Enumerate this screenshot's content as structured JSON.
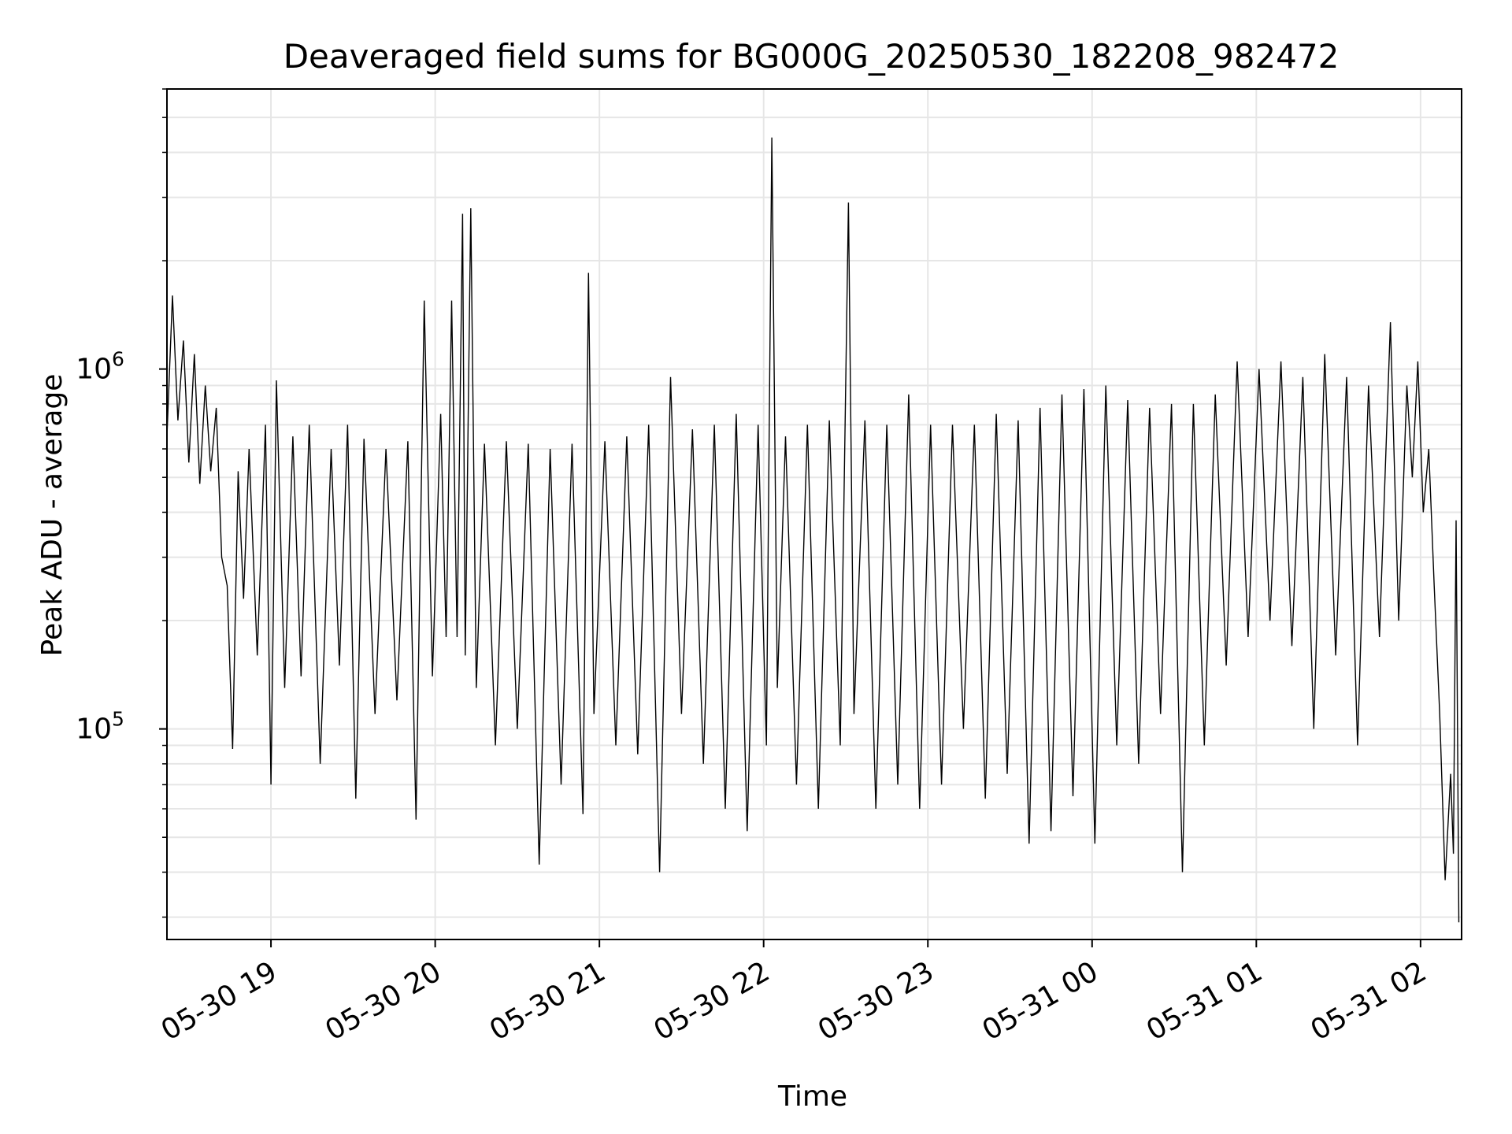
{
  "chart_data": {
    "type": "line",
    "title": "Deaveraged field sums for BG000G_20250530_182208_982472",
    "xlabel": "Time",
    "ylabel": "Peak ADU - average",
    "yscale": "log",
    "xlim": [
      "2025-05-30 18:22",
      "2025-05-31 02:15"
    ],
    "ylim": [
      26000,
      6000000
    ],
    "grid": true,
    "x_ticks": [
      {
        "t": "2025-05-30 19:00",
        "label": "05-30 19"
      },
      {
        "t": "2025-05-30 20:00",
        "label": "05-30 20"
      },
      {
        "t": "2025-05-30 21:00",
        "label": "05-30 21"
      },
      {
        "t": "2025-05-30 22:00",
        "label": "05-30 22"
      },
      {
        "t": "2025-05-30 23:00",
        "label": "05-30 23"
      },
      {
        "t": "2025-05-31 00:00",
        "label": "05-31 00"
      },
      {
        "t": "2025-05-31 01:00",
        "label": "05-31 01"
      },
      {
        "t": "2025-05-31 02:00",
        "label": "05-31 02"
      }
    ],
    "y_ticks": [
      {
        "value": 100000,
        "base": "10",
        "exp": "5"
      },
      {
        "value": 1000000,
        "base": "10",
        "exp": "6"
      }
    ],
    "series": [
      {
        "color": "#000000",
        "points": [
          [
            "2025-05-30 18:22",
            650000
          ],
          [
            "2025-05-30 18:24",
            1600000
          ],
          [
            "2025-05-30 18:26",
            720000
          ],
          [
            "2025-05-30 18:28",
            1200000
          ],
          [
            "2025-05-30 18:30",
            550000
          ],
          [
            "2025-05-30 18:32",
            1100000
          ],
          [
            "2025-05-30 18:34",
            480000
          ],
          [
            "2025-05-30 18:36",
            900000
          ],
          [
            "2025-05-30 18:38",
            520000
          ],
          [
            "2025-05-30 18:40",
            780000
          ],
          [
            "2025-05-30 18:42",
            300000
          ],
          [
            "2025-05-30 18:44",
            250000
          ],
          [
            "2025-05-30 18:46",
            88000
          ],
          [
            "2025-05-30 18:48",
            520000
          ],
          [
            "2025-05-30 18:50",
            230000
          ],
          [
            "2025-05-30 18:52",
            600000
          ],
          [
            "2025-05-30 18:55",
            160000
          ],
          [
            "2025-05-30 18:58",
            700000
          ],
          [
            "2025-05-30 19:00",
            70000
          ],
          [
            "2025-05-30 19:02",
            930000
          ],
          [
            "2025-05-30 19:05",
            130000
          ],
          [
            "2025-05-30 19:08",
            650000
          ],
          [
            "2025-05-30 19:11",
            140000
          ],
          [
            "2025-05-30 19:14",
            700000
          ],
          [
            "2025-05-30 19:18",
            80000
          ],
          [
            "2025-05-30 19:22",
            600000
          ],
          [
            "2025-05-30 19:25",
            150000
          ],
          [
            "2025-05-30 19:28",
            700000
          ],
          [
            "2025-05-30 19:31",
            64000
          ],
          [
            "2025-05-30 19:34",
            640000
          ],
          [
            "2025-05-30 19:38",
            110000
          ],
          [
            "2025-05-30 19:42",
            600000
          ],
          [
            "2025-05-30 19:46",
            120000
          ],
          [
            "2025-05-30 19:50",
            630000
          ],
          [
            "2025-05-30 19:53",
            56000
          ],
          [
            "2025-05-30 19:56",
            1550000
          ],
          [
            "2025-05-30 19:59",
            140000
          ],
          [
            "2025-05-30 20:02",
            750000
          ],
          [
            "2025-05-30 20:04",
            180000
          ],
          [
            "2025-05-30 20:06",
            1550000
          ],
          [
            "2025-05-30 20:08",
            180000
          ],
          [
            "2025-05-30 20:10",
            2700000
          ],
          [
            "2025-05-30 20:11",
            160000
          ],
          [
            "2025-05-30 20:13",
            2800000
          ],
          [
            "2025-05-30 20:15",
            130000
          ],
          [
            "2025-05-30 20:18",
            620000
          ],
          [
            "2025-05-30 20:22",
            90000
          ],
          [
            "2025-05-30 20:26",
            630000
          ],
          [
            "2025-05-30 20:30",
            100000
          ],
          [
            "2025-05-30 20:34",
            620000
          ],
          [
            "2025-05-30 20:38",
            42000
          ],
          [
            "2025-05-30 20:42",
            600000
          ],
          [
            "2025-05-30 20:46",
            70000
          ],
          [
            "2025-05-30 20:50",
            620000
          ],
          [
            "2025-05-30 20:54",
            58000
          ],
          [
            "2025-05-30 20:56",
            1850000
          ],
          [
            "2025-05-30 20:58",
            110000
          ],
          [
            "2025-05-30 21:02",
            630000
          ],
          [
            "2025-05-30 21:06",
            90000
          ],
          [
            "2025-05-30 21:10",
            650000
          ],
          [
            "2025-05-30 21:14",
            85000
          ],
          [
            "2025-05-30 21:18",
            700000
          ],
          [
            "2025-05-30 21:22",
            40000
          ],
          [
            "2025-05-30 21:26",
            950000
          ],
          [
            "2025-05-30 21:30",
            110000
          ],
          [
            "2025-05-30 21:34",
            680000
          ],
          [
            "2025-05-30 21:38",
            80000
          ],
          [
            "2025-05-30 21:42",
            700000
          ],
          [
            "2025-05-30 21:46",
            60000
          ],
          [
            "2025-05-30 21:50",
            750000
          ],
          [
            "2025-05-30 21:54",
            52000
          ],
          [
            "2025-05-30 21:58",
            700000
          ],
          [
            "2025-05-30 22:01",
            90000
          ],
          [
            "2025-05-30 22:03",
            4400000
          ],
          [
            "2025-05-30 22:05",
            130000
          ],
          [
            "2025-05-30 22:08",
            650000
          ],
          [
            "2025-05-30 22:12",
            70000
          ],
          [
            "2025-05-30 22:16",
            700000
          ],
          [
            "2025-05-30 22:20",
            60000
          ],
          [
            "2025-05-30 22:24",
            720000
          ],
          [
            "2025-05-30 22:28",
            90000
          ],
          [
            "2025-05-30 22:31",
            2900000
          ],
          [
            "2025-05-30 22:33",
            110000
          ],
          [
            "2025-05-30 22:37",
            720000
          ],
          [
            "2025-05-30 22:41",
            60000
          ],
          [
            "2025-05-30 22:45",
            700000
          ],
          [
            "2025-05-30 22:49",
            70000
          ],
          [
            "2025-05-30 22:53",
            850000
          ],
          [
            "2025-05-30 22:57",
            60000
          ],
          [
            "2025-05-30 23:01",
            700000
          ],
          [
            "2025-05-30 23:05",
            70000
          ],
          [
            "2025-05-30 23:09",
            700000
          ],
          [
            "2025-05-30 23:13",
            100000
          ],
          [
            "2025-05-30 23:17",
            700000
          ],
          [
            "2025-05-30 23:21",
            64000
          ],
          [
            "2025-05-30 23:25",
            750000
          ],
          [
            "2025-05-30 23:29",
            75000
          ],
          [
            "2025-05-30 23:33",
            720000
          ],
          [
            "2025-05-30 23:37",
            48000
          ],
          [
            "2025-05-30 23:41",
            780000
          ],
          [
            "2025-05-30 23:45",
            52000
          ],
          [
            "2025-05-30 23:49",
            850000
          ],
          [
            "2025-05-30 23:53",
            65000
          ],
          [
            "2025-05-30 23:57",
            880000
          ],
          [
            "2025-05-31 00:01",
            48000
          ],
          [
            "2025-05-31 00:05",
            900000
          ],
          [
            "2025-05-31 00:09",
            90000
          ],
          [
            "2025-05-31 00:13",
            820000
          ],
          [
            "2025-05-31 00:17",
            80000
          ],
          [
            "2025-05-31 00:21",
            780000
          ],
          [
            "2025-05-31 00:25",
            110000
          ],
          [
            "2025-05-31 00:29",
            800000
          ],
          [
            "2025-05-31 00:33",
            40000
          ],
          [
            "2025-05-31 00:37",
            800000
          ],
          [
            "2025-05-31 00:41",
            90000
          ],
          [
            "2025-05-31 00:45",
            850000
          ],
          [
            "2025-05-31 00:49",
            150000
          ],
          [
            "2025-05-31 00:53",
            1050000
          ],
          [
            "2025-05-31 00:57",
            180000
          ],
          [
            "2025-05-31 01:01",
            1000000
          ],
          [
            "2025-05-31 01:05",
            200000
          ],
          [
            "2025-05-31 01:09",
            1050000
          ],
          [
            "2025-05-31 01:13",
            170000
          ],
          [
            "2025-05-31 01:17",
            950000
          ],
          [
            "2025-05-31 01:21",
            100000
          ],
          [
            "2025-05-31 01:25",
            1100000
          ],
          [
            "2025-05-31 01:29",
            160000
          ],
          [
            "2025-05-31 01:33",
            950000
          ],
          [
            "2025-05-31 01:37",
            90000
          ],
          [
            "2025-05-31 01:41",
            900000
          ],
          [
            "2025-05-31 01:45",
            180000
          ],
          [
            "2025-05-31 01:49",
            1350000
          ],
          [
            "2025-05-31 01:52",
            200000
          ],
          [
            "2025-05-31 01:55",
            900000
          ],
          [
            "2025-05-31 01:57",
            500000
          ],
          [
            "2025-05-31 01:59",
            1050000
          ],
          [
            "2025-05-31 02:01",
            400000
          ],
          [
            "2025-05-31 02:03",
            600000
          ],
          [
            "2025-05-31 02:05",
            250000
          ],
          [
            "2025-05-31 02:07",
            110000
          ],
          [
            "2025-05-31 02:09",
            38000
          ],
          [
            "2025-05-31 02:11",
            75000
          ],
          [
            "2025-05-31 02:12",
            45000
          ],
          [
            "2025-05-31 02:13",
            380000
          ],
          [
            "2025-05-31 02:14",
            29000
          ]
        ]
      }
    ]
  }
}
